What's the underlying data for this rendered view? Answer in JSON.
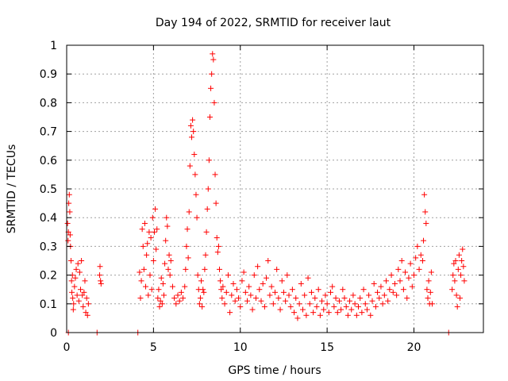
{
  "chart_data": {
    "type": "scatter",
    "title": "Day 194 of 2022, SRMTID for receiver laut",
    "xlabel": "GPS time / hours",
    "ylabel": "SRMTID / TECUs",
    "xlim": [
      0,
      24
    ],
    "ylim": [
      0,
      1
    ],
    "xticks": [
      0,
      5,
      10,
      15,
      20
    ],
    "xtick_labels": [
      "0",
      "5",
      "10",
      "15",
      "20"
    ],
    "yticks": [
      0,
      0.1,
      0.2,
      0.3,
      0.4,
      0.5,
      0.6,
      0.7,
      0.8,
      0.9,
      1
    ],
    "ytick_labels": [
      "0",
      "0.1",
      "0.2",
      "0.3",
      "0.4",
      "0.5",
      "0.6",
      "0.7",
      "0.8",
      "0.9",
      "1"
    ],
    "grid": true,
    "marker": "plus",
    "color": "#ff0000",
    "series": [
      {
        "name": "SRMTID",
        "points": [
          [
            0.05,
            0.38
          ],
          [
            0.08,
            0.32
          ],
          [
            0.1,
            0.35
          ],
          [
            0.12,
            0.45
          ],
          [
            0.15,
            0.48
          ],
          [
            0.18,
            0.42
          ],
          [
            0.2,
            0.34
          ],
          [
            0.22,
            0.3
          ],
          [
            0.25,
            0.25
          ],
          [
            0.28,
            0.18
          ],
          [
            0.3,
            0.14
          ],
          [
            0.33,
            0.2
          ],
          [
            0.35,
            0.12
          ],
          [
            0.38,
            0.08
          ],
          [
            0.4,
            0.1
          ],
          [
            0.45,
            0.16
          ],
          [
            0.5,
            0.19
          ],
          [
            0.55,
            0.22
          ],
          [
            0.6,
            0.13
          ],
          [
            0.65,
            0.24
          ],
          [
            0.7,
            0.11
          ],
          [
            0.75,
            0.21
          ],
          [
            0.8,
            0.15
          ],
          [
            0.85,
            0.25
          ],
          [
            0.9,
            0.13
          ],
          [
            0.95,
            0.09
          ],
          [
            1.0,
            0.14
          ],
          [
            1.05,
            0.18
          ],
          [
            1.1,
            0.07
          ],
          [
            1.15,
            0.12
          ],
          [
            1.2,
            0.06
          ],
          [
            1.25,
            0.1
          ],
          [
            0.1,
            0.0
          ],
          [
            1.75,
            0.0
          ],
          [
            1.9,
            0.2
          ],
          [
            1.92,
            0.23
          ],
          [
            1.95,
            0.18
          ],
          [
            1.98,
            0.17
          ],
          [
            4.1,
            0.0
          ],
          [
            4.2,
            0.21
          ],
          [
            4.25,
            0.12
          ],
          [
            4.3,
            0.18
          ],
          [
            4.35,
            0.36
          ],
          [
            4.4,
            0.3
          ],
          [
            4.45,
            0.22
          ],
          [
            4.5,
            0.38
          ],
          [
            4.55,
            0.16
          ],
          [
            4.6,
            0.27
          ],
          [
            4.65,
            0.31
          ],
          [
            4.7,
            0.13
          ],
          [
            4.75,
            0.35
          ],
          [
            4.8,
            0.2
          ],
          [
            4.85,
            0.33
          ],
          [
            4.9,
            0.15
          ],
          [
            4.95,
            0.4
          ],
          [
            5.0,
            0.25
          ],
          [
            5.05,
            0.35
          ],
          [
            5.1,
            0.43
          ],
          [
            5.15,
            0.29
          ],
          [
            5.2,
            0.36
          ],
          [
            5.25,
            0.12
          ],
          [
            5.3,
            0.15
          ],
          [
            5.35,
            0.09
          ],
          [
            5.4,
            0.11
          ],
          [
            5.45,
            0.19
          ],
          [
            5.5,
            0.1
          ],
          [
            5.55,
            0.17
          ],
          [
            5.6,
            0.13
          ],
          [
            5.65,
            0.24
          ],
          [
            5.7,
            0.32
          ],
          [
            5.75,
            0.4
          ],
          [
            5.8,
            0.37
          ],
          [
            5.85,
            0.22
          ],
          [
            5.9,
            0.27
          ],
          [
            5.95,
            0.2
          ],
          [
            6.0,
            0.25
          ],
          [
            6.1,
            0.16
          ],
          [
            6.2,
            0.12
          ],
          [
            6.3,
            0.1
          ],
          [
            6.4,
            0.13
          ],
          [
            6.5,
            0.11
          ],
          [
            6.6,
            0.14
          ],
          [
            6.7,
            0.12
          ],
          [
            6.8,
            0.16
          ],
          [
            6.85,
            0.22
          ],
          [
            6.9,
            0.3
          ],
          [
            6.95,
            0.36
          ],
          [
            7.0,
            0.26
          ],
          [
            7.05,
            0.42
          ],
          [
            7.1,
            0.58
          ],
          [
            7.15,
            0.72
          ],
          [
            7.2,
            0.68
          ],
          [
            7.25,
            0.74
          ],
          [
            7.3,
            0.7
          ],
          [
            7.35,
            0.62
          ],
          [
            7.4,
            0.55
          ],
          [
            7.45,
            0.48
          ],
          [
            7.5,
            0.4
          ],
          [
            7.55,
            0.2
          ],
          [
            7.6,
            0.15
          ],
          [
            7.65,
            0.1
          ],
          [
            7.7,
            0.12
          ],
          [
            7.75,
            0.18
          ],
          [
            7.8,
            0.09
          ],
          [
            7.85,
            0.15
          ],
          [
            7.9,
            0.14
          ],
          [
            7.95,
            0.22
          ],
          [
            8.0,
            0.27
          ],
          [
            8.05,
            0.35
          ],
          [
            8.1,
            0.43
          ],
          [
            8.15,
            0.5
          ],
          [
            8.2,
            0.6
          ],
          [
            8.25,
            0.75
          ],
          [
            8.3,
            0.85
          ],
          [
            8.35,
            0.9
          ],
          [
            8.4,
            0.97
          ],
          [
            8.45,
            0.95
          ],
          [
            8.5,
            0.8
          ],
          [
            8.55,
            0.55
          ],
          [
            8.6,
            0.45
          ],
          [
            8.65,
            0.33
          ],
          [
            8.7,
            0.28
          ],
          [
            8.75,
            0.3
          ],
          [
            8.8,
            0.22
          ],
          [
            8.85,
            0.18
          ],
          [
            8.9,
            0.15
          ],
          [
            8.95,
            0.12
          ],
          [
            9.0,
            0.16
          ],
          [
            9.1,
            0.1
          ],
          [
            9.2,
            0.14
          ],
          [
            9.3,
            0.2
          ],
          [
            9.4,
            0.07
          ],
          [
            9.5,
            0.13
          ],
          [
            9.6,
            0.17
          ],
          [
            9.7,
            0.11
          ],
          [
            9.8,
            0.15
          ],
          [
            9.9,
            0.12
          ],
          [
            10.0,
            0.09
          ],
          [
            10.1,
            0.18
          ],
          [
            10.2,
            0.21
          ],
          [
            10.3,
            0.14
          ],
          [
            10.4,
            0.11
          ],
          [
            10.5,
            0.16
          ],
          [
            10.6,
            0.13
          ],
          [
            10.7,
            0.08
          ],
          [
            10.8,
            0.2
          ],
          [
            10.9,
            0.12
          ],
          [
            11.0,
            0.23
          ],
          [
            11.1,
            0.15
          ],
          [
            11.2,
            0.11
          ],
          [
            11.3,
            0.17
          ],
          [
            11.4,
            0.09
          ],
          [
            11.5,
            0.19
          ],
          [
            11.6,
            0.25
          ],
          [
            11.7,
            0.13
          ],
          [
            11.8,
            0.16
          ],
          [
            11.9,
            0.1
          ],
          [
            12.0,
            0.14
          ],
          [
            12.1,
            0.22
          ],
          [
            12.2,
            0.12
          ],
          [
            12.3,
            0.08
          ],
          [
            12.4,
            0.18
          ],
          [
            12.5,
            0.14
          ],
          [
            12.6,
            0.11
          ],
          [
            12.7,
            0.2
          ],
          [
            12.8,
            0.13
          ],
          [
            12.9,
            0.09
          ],
          [
            13.0,
            0.15
          ],
          [
            13.1,
            0.07
          ],
          [
            13.2,
            0.12
          ],
          [
            13.3,
            0.05
          ],
          [
            13.4,
            0.1
          ],
          [
            13.5,
            0.17
          ],
          [
            13.6,
            0.08
          ],
          [
            13.7,
            0.13
          ],
          [
            13.8,
            0.06
          ],
          [
            13.9,
            0.19
          ],
          [
            14.0,
            0.1
          ],
          [
            14.1,
            0.14
          ],
          [
            14.2,
            0.07
          ],
          [
            14.3,
            0.12
          ],
          [
            14.4,
            0.09
          ],
          [
            14.5,
            0.15
          ],
          [
            14.6,
            0.06
          ],
          [
            14.7,
            0.11
          ],
          [
            14.8,
            0.08
          ],
          [
            14.9,
            0.13
          ],
          [
            15.0,
            0.1
          ],
          [
            15.1,
            0.07
          ],
          [
            15.2,
            0.14
          ],
          [
            15.3,
            0.16
          ],
          [
            15.4,
            0.09
          ],
          [
            15.5,
            0.12
          ],
          [
            15.6,
            0.07
          ],
          [
            15.7,
            0.11
          ],
          [
            15.8,
            0.08
          ],
          [
            15.9,
            0.15
          ],
          [
            16.0,
            0.12
          ],
          [
            16.1,
            0.09
          ],
          [
            16.2,
            0.06
          ],
          [
            16.3,
            0.11
          ],
          [
            16.4,
            0.08
          ],
          [
            16.5,
            0.13
          ],
          [
            16.6,
            0.1
          ],
          [
            16.7,
            0.06
          ],
          [
            16.8,
            0.09
          ],
          [
            16.9,
            0.12
          ],
          [
            17.0,
            0.07
          ],
          [
            17.1,
            0.15
          ],
          [
            17.2,
            0.1
          ],
          [
            17.3,
            0.08
          ],
          [
            17.4,
            0.13
          ],
          [
            17.5,
            0.06
          ],
          [
            17.6,
            0.11
          ],
          [
            17.7,
            0.17
          ],
          [
            17.8,
            0.09
          ],
          [
            17.9,
            0.14
          ],
          [
            18.0,
            0.12
          ],
          [
            18.1,
            0.16
          ],
          [
            18.2,
            0.1
          ],
          [
            18.3,
            0.13
          ],
          [
            18.4,
            0.18
          ],
          [
            18.5,
            0.11
          ],
          [
            18.6,
            0.15
          ],
          [
            18.7,
            0.2
          ],
          [
            18.8,
            0.14
          ],
          [
            18.9,
            0.17
          ],
          [
            19.0,
            0.13
          ],
          [
            19.1,
            0.22
          ],
          [
            19.2,
            0.18
          ],
          [
            19.3,
            0.25
          ],
          [
            19.4,
            0.15
          ],
          [
            19.5,
            0.21
          ],
          [
            19.6,
            0.12
          ],
          [
            19.7,
            0.19
          ],
          [
            19.8,
            0.24
          ],
          [
            19.9,
            0.16
          ],
          [
            20.0,
            0.2
          ],
          [
            20.1,
            0.26
          ],
          [
            20.2,
            0.3
          ],
          [
            20.3,
            0.22
          ],
          [
            20.4,
            0.27
          ],
          [
            20.5,
            0.25
          ],
          [
            20.55,
            0.32
          ],
          [
            20.6,
            0.48
          ],
          [
            20.65,
            0.42
          ],
          [
            20.7,
            0.38
          ],
          [
            20.75,
            0.15
          ],
          [
            20.8,
            0.12
          ],
          [
            20.85,
            0.18
          ],
          [
            20.9,
            0.1
          ],
          [
            20.95,
            0.14
          ],
          [
            21.0,
            0.21
          ],
          [
            21.05,
            0.1
          ],
          [
            22.0,
            0.0
          ],
          [
            22.2,
            0.15
          ],
          [
            22.25,
            0.2
          ],
          [
            22.3,
            0.24
          ],
          [
            22.35,
            0.18
          ],
          [
            22.4,
            0.25
          ],
          [
            22.45,
            0.13
          ],
          [
            22.5,
            0.09
          ],
          [
            22.55,
            0.22
          ],
          [
            22.6,
            0.27
          ],
          [
            22.65,
            0.12
          ],
          [
            22.7,
            0.2
          ],
          [
            22.75,
            0.25
          ],
          [
            22.8,
            0.29
          ],
          [
            22.85,
            0.23
          ],
          [
            22.9,
            0.18
          ]
        ]
      }
    ]
  }
}
